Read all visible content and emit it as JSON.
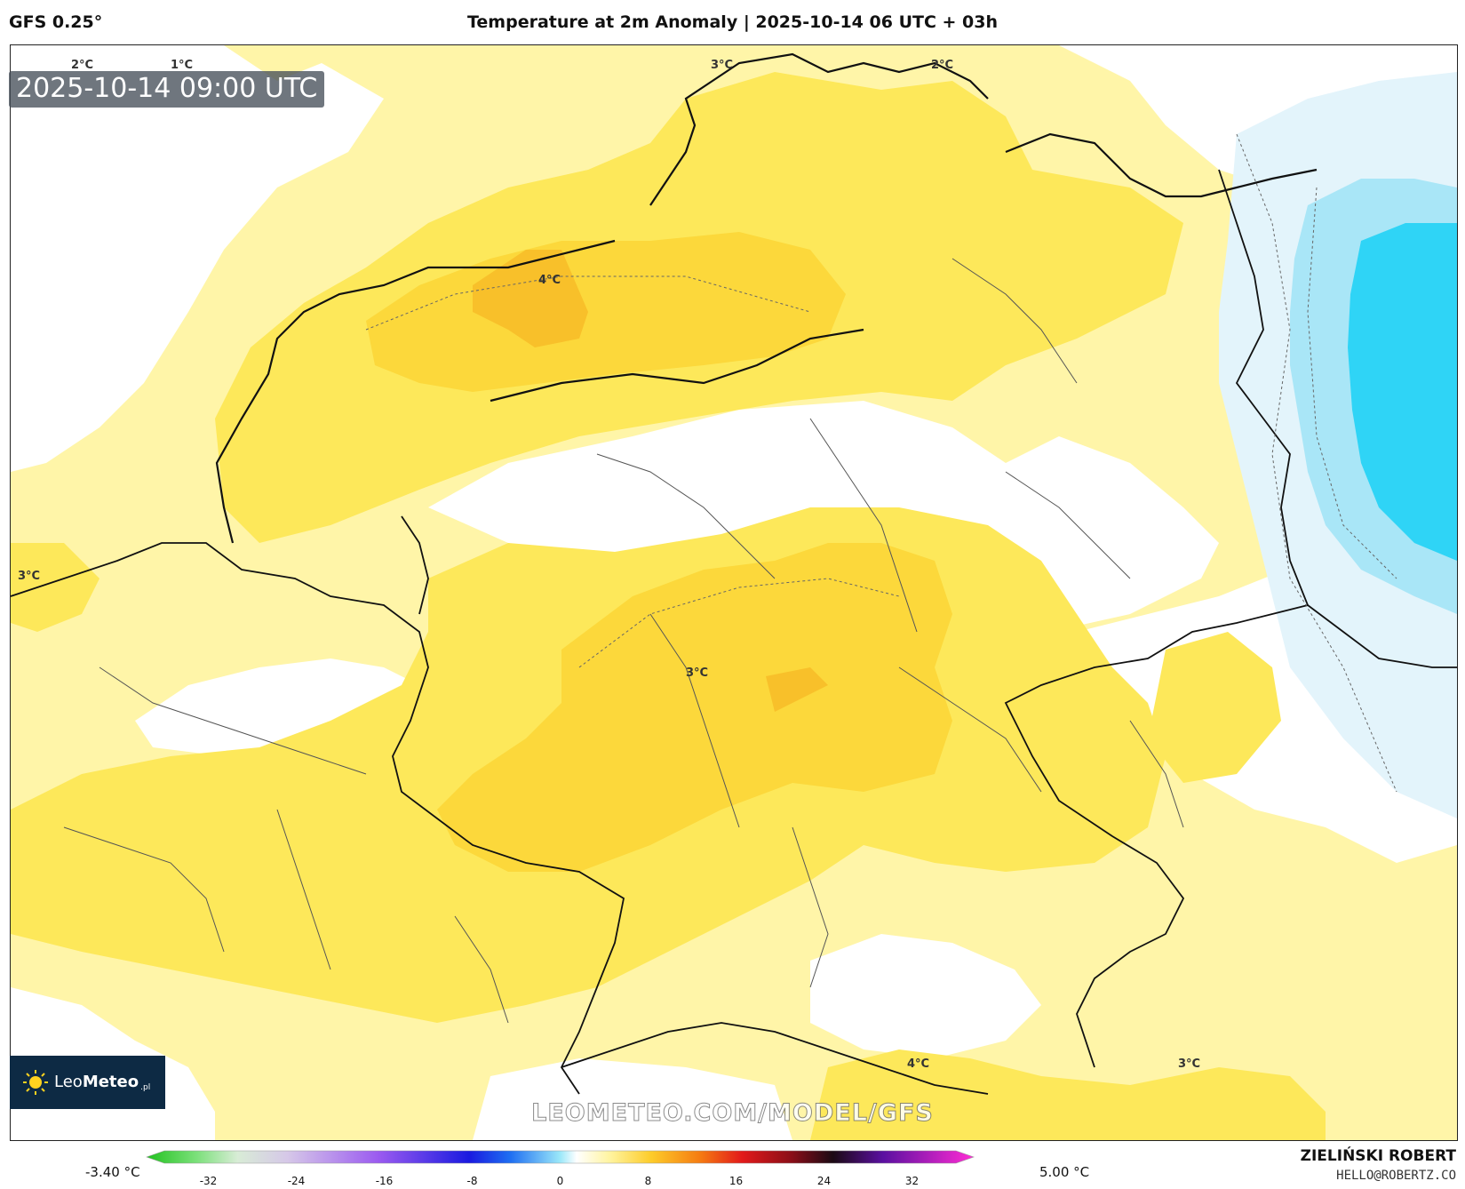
{
  "header": {
    "model": "GFS 0.25°",
    "title": "Temperature at 2m Anomaly | 2025-10-14 06 UTC + 03h"
  },
  "timestamp": "2025-10-14 09:00 UTC",
  "map": {
    "contour_labels": [
      "2°C",
      "1°C",
      "3°C",
      "2°C",
      "4°C",
      "3°C",
      "3°C",
      "4°C",
      "3°C"
    ],
    "palette": {
      "pale_yellow": "#fff5a8",
      "yellow": "#fde85a",
      "gold": "#fcd83b",
      "orange": "#f8c02a",
      "white": "#ffffff",
      "light_blue": "#e3f4fb",
      "sky_blue": "#a9e6f7",
      "cyan": "#2fd4f6"
    }
  },
  "logo": {
    "name_light": "Leo",
    "name_bold": "Meteo",
    "suffix": ".pl"
  },
  "watermark": "LEOMETEO.COM/MODEL/GFS",
  "colorbar": {
    "min_label": "-3.40 °C",
    "max_label": "5.00 °C",
    "ticks": [
      "-32",
      "-24",
      "-16",
      "-8",
      "0",
      "8",
      "16",
      "24",
      "32"
    ],
    "tick_values": [
      -32,
      -24,
      -16,
      -8,
      0,
      8,
      16,
      24,
      32
    ],
    "range": [
      -36,
      36
    ]
  },
  "author": {
    "name": "ZIELIŃSKI ROBERT",
    "email": "HELLO@ROBERTZ.CO"
  }
}
